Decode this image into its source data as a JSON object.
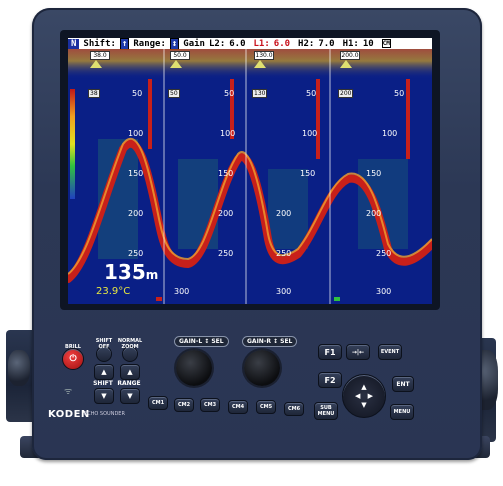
{
  "header": {
    "mode_indicator": "N",
    "shift_label": "Shift:",
    "shift_value": "↑",
    "range_label": "Range:",
    "range_value": "↕",
    "gain_label": "Gain",
    "l2_label": "L2:",
    "l2_value": "6.0",
    "l1_label": "L1:",
    "l1_value": "6.0",
    "h2_label": "H2:",
    "h2_value": "7.0",
    "h1_label": "H1:",
    "h1_value": "10",
    "right_box": "CM",
    "right_small": "F1\nF2"
  },
  "panels": [
    {
      "freq_box": "38.0",
      "ticks": [
        "50",
        "100",
        "150",
        "200",
        "250"
      ]
    },
    {
      "freq_box": "50.0",
      "ticks": [
        "50",
        "100",
        "150",
        "200",
        "250",
        "300"
      ]
    },
    {
      "freq_box": "130.0",
      "ticks": [
        "50",
        "100",
        "150",
        "200",
        "250",
        "300"
      ]
    },
    {
      "freq_box": "200.0",
      "ticks": [
        "50",
        "100",
        "150",
        "200",
        "250",
        "300"
      ]
    }
  ],
  "panel_caps": [
    "38",
    "50",
    "130",
    "200"
  ],
  "depth_readout": "135",
  "depth_unit": "m",
  "temp_readout": "23.9°C",
  "colors": {
    "screen_bg": "#0a1f86",
    "housing": "#2c3855",
    "echo_strong": "#c8201a",
    "echo_mid": "#f0a030",
    "echo_weak": "#3fbf5f"
  },
  "controls": {
    "brill": "BRILL",
    "shift_off": "SHIFT OFF",
    "normal_zoom": "NORMAL ZOOM",
    "shift": "SHIFT",
    "range": "RANGE",
    "gain_l_sel": "GAIN-L ↕ SEL",
    "gain_r_sel": "GAIN-R ↕ SEL",
    "f1": "F1",
    "f2": "F2",
    "arrows_label": "→|←",
    "event": "EVENT",
    "ent": "ENT",
    "menu": "MENU",
    "sub_menu": "SUB MENU",
    "cm1": "CM1",
    "cm2": "CM2",
    "cm3": "CM3",
    "cm4": "CM4",
    "cm5": "CM5",
    "cm6": "CM6"
  },
  "brand": {
    "logo": "KODEN",
    "model": "ECHO SOUNDER"
  }
}
